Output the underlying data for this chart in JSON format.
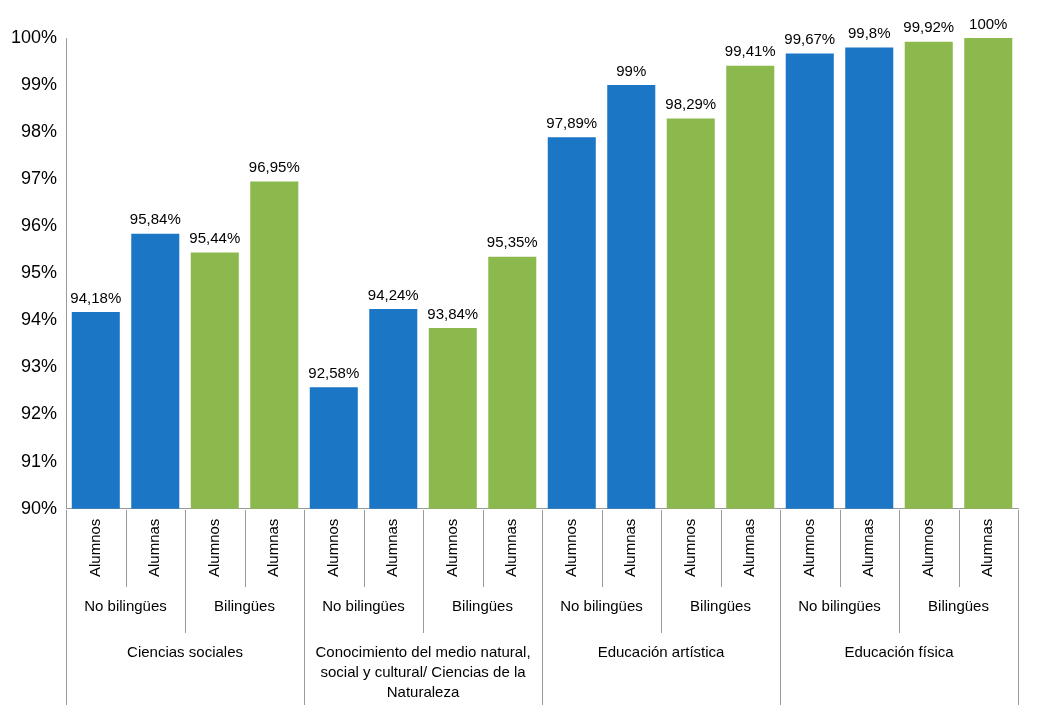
{
  "chart_data": {
    "type": "bar",
    "categories": [
      "Alumnos",
      "Alumnas",
      "Alumnos",
      "Alumnas",
      "Alumnos",
      "Alumnas",
      "Alumnos",
      "Alumnas",
      "Alumnos",
      "Alumnas",
      "Alumnos",
      "Alumnas",
      "Alumnos",
      "Alumnas",
      "Alumnos",
      "Alumnas"
    ],
    "values": [
      94.18,
      95.84,
      95.44,
      96.95,
      92.58,
      94.24,
      93.84,
      95.35,
      97.89,
      99,
      98.29,
      99.41,
      99.67,
      99.8,
      99.92,
      100
    ],
    "value_labels": [
      "94,18%",
      "95,84%",
      "95,44%",
      "96,95%",
      "92,58%",
      "94,24%",
      "93,84%",
      "95,35%",
      "97,89%",
      "99%",
      "98,29%",
      "99,41%",
      "99,67%",
      "99,8%",
      "99,92%",
      "100%"
    ],
    "colors": [
      "#1c76c6",
      "#1c76c6",
      "#8cb94e",
      "#8cb94e",
      "#1c76c6",
      "#1c76c6",
      "#8cb94e",
      "#8cb94e",
      "#1c76c6",
      "#1c76c6",
      "#8cb94e",
      "#8cb94e",
      "#1c76c6",
      "#1c76c6",
      "#8cb94e",
      "#8cb94e"
    ],
    "ylim": [
      90,
      100
    ],
    "yticks": [
      {
        "value": 90,
        "label": "90%"
      },
      {
        "value": 91,
        "label": "91%"
      },
      {
        "value": 92,
        "label": "92%"
      },
      {
        "value": 93,
        "label": "93%"
      },
      {
        "value": 94,
        "label": "94%"
      },
      {
        "value": 95,
        "label": "95%"
      },
      {
        "value": 96,
        "label": "96%"
      },
      {
        "value": 97,
        "label": "97%"
      },
      {
        "value": 98,
        "label": "98%"
      },
      {
        "value": 99,
        "label": "99%"
      },
      {
        "value": 100,
        "label": "100%"
      }
    ],
    "annotations": [
      "No bilingües",
      "Bilingües",
      "No bilingües",
      "Bilingües",
      "No bilingües",
      "Bilingües",
      "No bilingües",
      "Bilingües",
      "Ciencias sociales",
      "Conocimiento del medio natural, social y cultural/ Ciencias de la Naturaleza",
      "Educación artística",
      "Educación física"
    ],
    "grid": false,
    "legend": false
  }
}
